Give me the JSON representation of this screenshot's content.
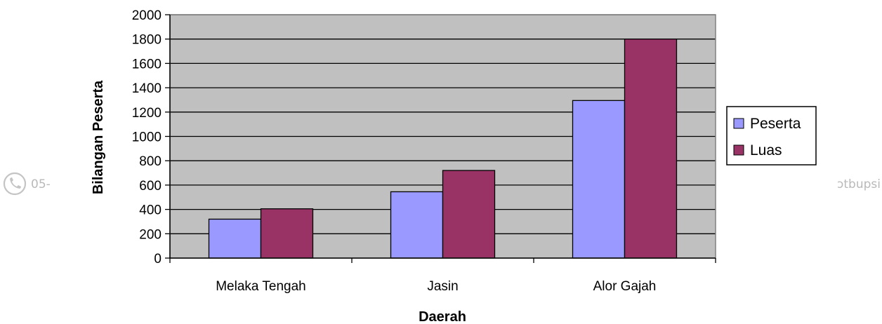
{
  "watermark": {
    "left_text": "05-",
    "right_text": "ɔtbupsi",
    "icon": "phone-icon"
  },
  "chart_data": {
    "type": "bar",
    "categories": [
      "Melaka Tengah",
      "Jasin",
      "Alor Gajah"
    ],
    "series": [
      {
        "name": "Peserta",
        "values": [
          320,
          545,
          1295
        ],
        "color": "#9999ff"
      },
      {
        "name": "Luas",
        "values": [
          405,
          720,
          1800
        ],
        "color": "#993366"
      }
    ],
    "title": "",
    "xlabel": "Daerah",
    "ylabel": "Bilangan Peserta",
    "ylim": [
      0,
      2000
    ],
    "yticks": [
      "0",
      "200",
      "400",
      "600",
      "800",
      "1000",
      "1200",
      "1400",
      "1600",
      "1800",
      "2000"
    ],
    "grid": true,
    "plot_background": "#c0c0c0",
    "legend_position": "right"
  }
}
